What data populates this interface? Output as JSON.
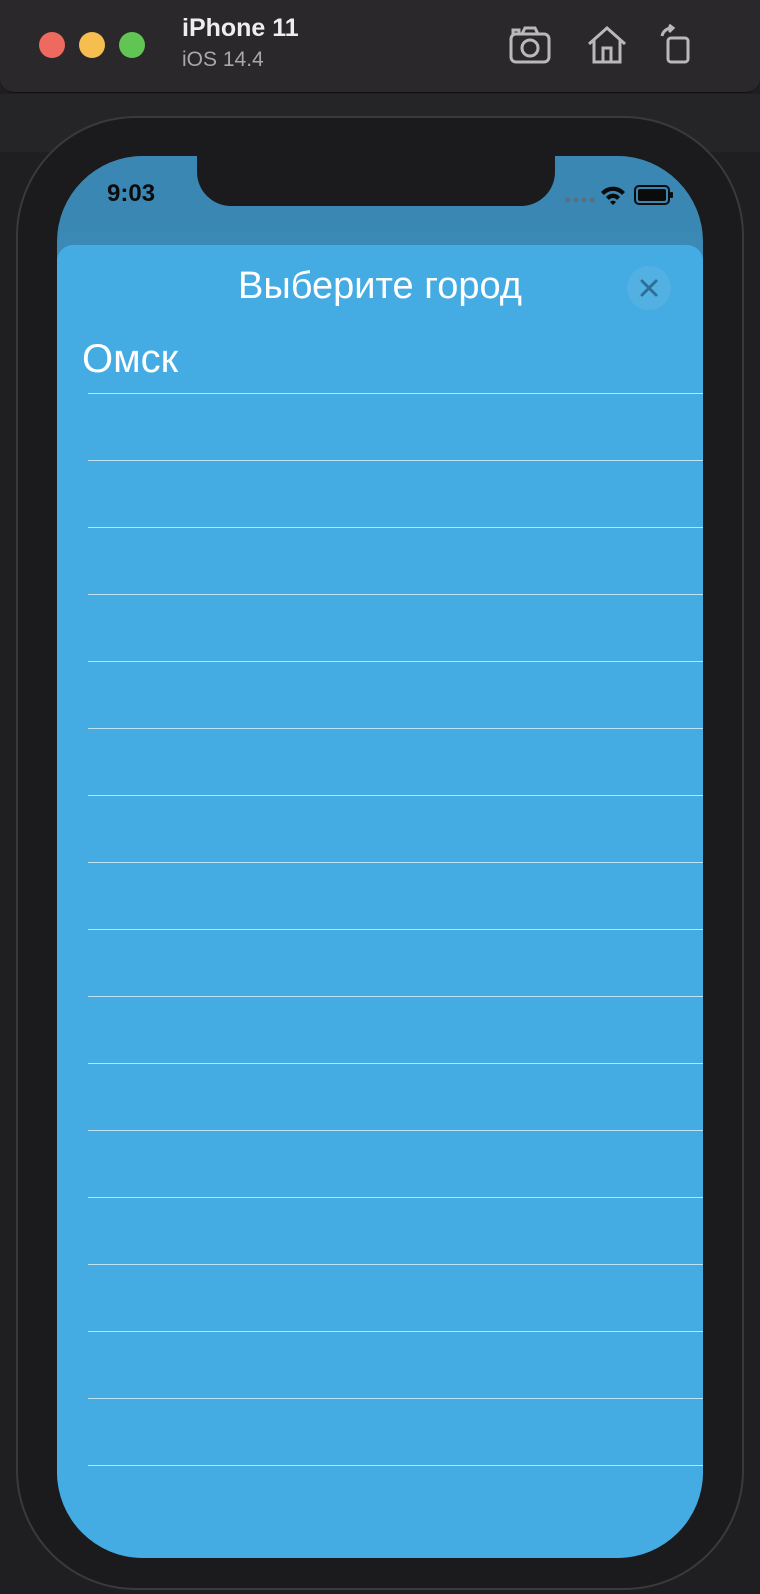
{
  "simulator": {
    "device_name": "iPhone 11",
    "os_version": "iOS 14.4",
    "tools": [
      "screenshot-icon",
      "home-icon",
      "rotate-icon"
    ]
  },
  "status_bar": {
    "time": "9:03"
  },
  "sheet": {
    "title": "Выберите город",
    "close_icon": "close-icon",
    "rows": [
      {
        "label": "Омск"
      },
      {
        "label": ""
      },
      {
        "label": ""
      },
      {
        "label": ""
      },
      {
        "label": ""
      },
      {
        "label": ""
      },
      {
        "label": ""
      },
      {
        "label": ""
      },
      {
        "label": ""
      },
      {
        "label": ""
      },
      {
        "label": ""
      },
      {
        "label": ""
      },
      {
        "label": ""
      },
      {
        "label": ""
      },
      {
        "label": ""
      },
      {
        "label": ""
      },
      {
        "label": ""
      }
    ]
  },
  "colors": {
    "sheet_background": "#45ace3",
    "status_bar_background": "#3a87b3",
    "separator": "#bfe3f6"
  }
}
